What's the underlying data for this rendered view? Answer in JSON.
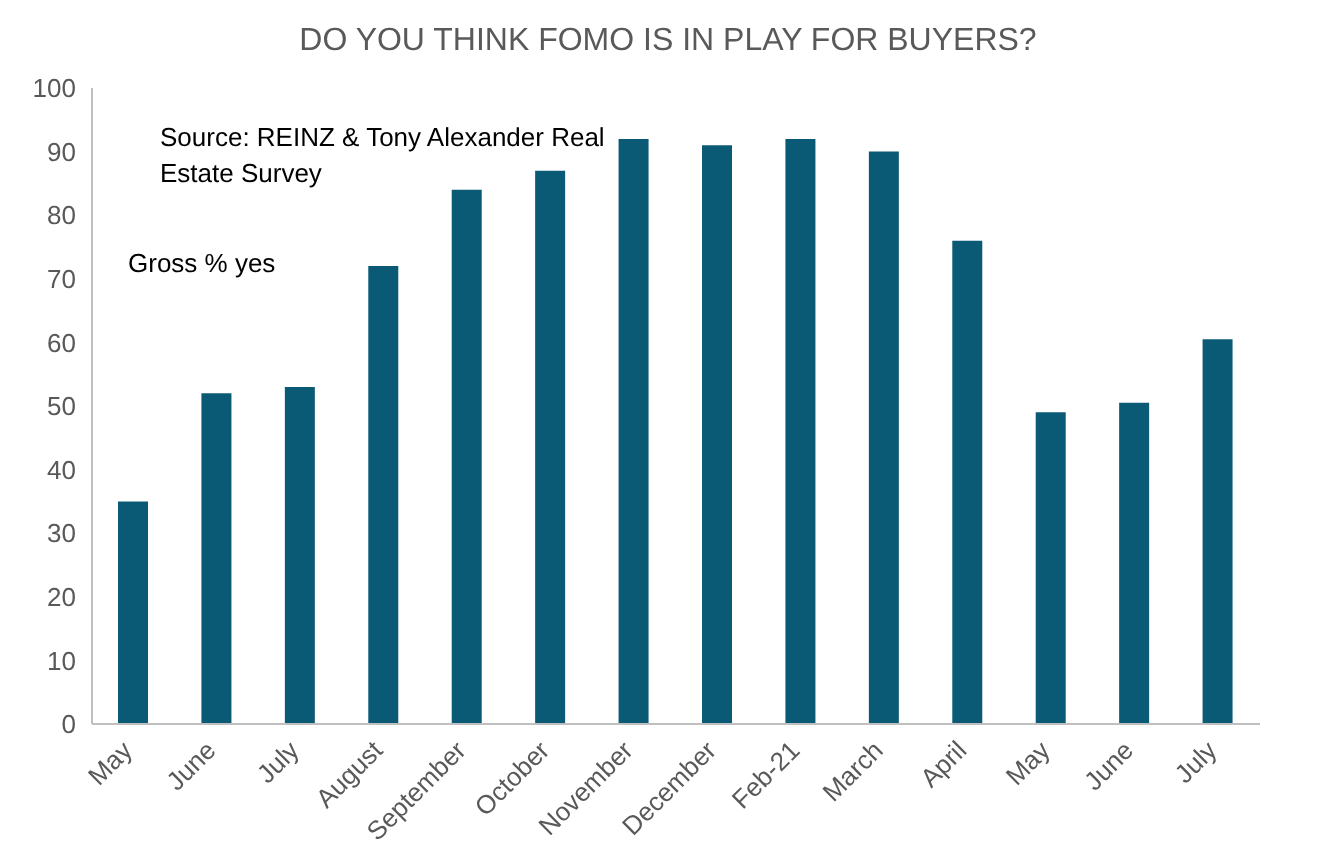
{
  "chart_data": {
    "type": "bar",
    "title": "DO YOU THINK FOMO IS IN PLAY FOR BUYERS?",
    "categories": [
      "May",
      "June",
      "July",
      "August",
      "September",
      "October",
      "November",
      "December",
      "Feb-21",
      "March",
      "April",
      "May",
      "June",
      "July"
    ],
    "values": [
      35,
      52,
      53,
      72,
      84,
      87,
      92,
      91,
      92,
      90,
      76,
      49,
      50.5,
      60.5
    ],
    "color": "#0b5a75",
    "ylim": [
      0,
      100
    ],
    "yticks": [
      0,
      10,
      20,
      30,
      40,
      50,
      60,
      70,
      80,
      90,
      100
    ],
    "grid": false,
    "annotations": [
      "Source: REINZ & Tony Alexander Real Estate Survey",
      "Gross % yes"
    ]
  }
}
